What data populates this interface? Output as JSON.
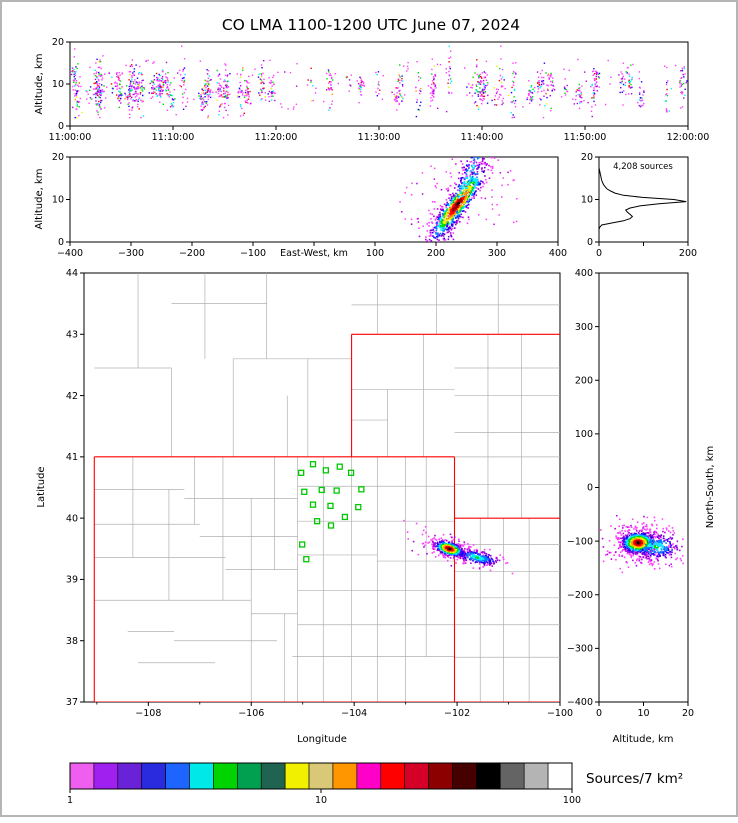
{
  "title": "CO LMA 1100-1200 UTC June 07, 2024",
  "colorbar": {
    "label": "Sources/7 km²",
    "scale": "log",
    "tick_values": [
      1,
      10,
      100
    ],
    "tick_labels": [
      "1",
      "10",
      "100"
    ],
    "colors": [
      "#ef5fef",
      "#a020f0",
      "#6a22d8",
      "#2a2ade",
      "#1e64ff",
      "#00e8e8",
      "#00d400",
      "#00a050",
      "#1e6450",
      "#f0f000",
      "#d8c878",
      "#ff9600",
      "#ff00c8",
      "#ff0000",
      "#d40028",
      "#8c0000",
      "#460000",
      "#000000",
      "#646464",
      "#b4b4b4",
      "#ffffff"
    ]
  },
  "palette": {
    "scatter_hot_order": [
      "#ff3cff",
      "#b400e6",
      "#7800d2",
      "#1e00ff",
      "#0078ff",
      "#00f0ff",
      "#00dc00",
      "#f0f000",
      "#ff9600",
      "#ff0000",
      "#a00000",
      "#000000"
    ]
  },
  "chart_data": [
    {
      "id": "time-height",
      "type": "scatter",
      "ylabel": "Altitude, km",
      "xlim": [
        0,
        3600
      ],
      "ylim": [
        0,
        20
      ],
      "x_ticks": {
        "values": [
          0,
          600,
          1200,
          1800,
          2400,
          3000,
          3600
        ],
        "labels": [
          "11:00:00",
          "11:10:00",
          "11:20:00",
          "11:30:00",
          "11:40:00",
          "11:50:00",
          "12:00:00"
        ]
      },
      "y_ticks": {
        "values": [
          0,
          10,
          20
        ],
        "labels": [
          "0",
          "10",
          "20"
        ]
      },
      "column_groups": [
        {
          "t_start": 0,
          "t_end": 1250,
          "columns": 40
        },
        {
          "t_start": 1250,
          "t_end": 2050,
          "columns": 9
        },
        {
          "t_start": 2050,
          "t_end": 3150,
          "columns": 19
        },
        {
          "t_start": 3150,
          "t_end": 3580,
          "columns": 5
        }
      ],
      "sparse_points": 130,
      "altitude_range": [
        2,
        19
      ]
    },
    {
      "id": "ew-height",
      "type": "scatter",
      "ylabel": "Altitude, km",
      "xlim": [
        -400,
        400
      ],
      "ylim": [
        0,
        20
      ],
      "x_ticks": {
        "values": [
          -400,
          -300,
          -200,
          -100,
          0,
          100,
          200,
          300,
          400
        ],
        "labels": [
          "−400",
          "−300",
          "−200",
          "−100",
          "East-West, km",
          "100",
          "200",
          "300",
          "400"
        ]
      },
      "y_ticks": {
        "values": [
          0,
          10,
          20
        ],
        "labels": [
          "0",
          "10",
          "20"
        ]
      },
      "clusters": [
        {
          "cx": 235,
          "cy": 8.8,
          "sx": 22,
          "sy": 1.7,
          "tilt_deg": 10,
          "n": 700,
          "style": "hot"
        },
        {
          "cx": 248,
          "cy": 13.2,
          "sx": 26,
          "sy": 2.6,
          "tilt_deg": 18,
          "n": 240,
          "style": "cool"
        },
        {
          "cx": 233,
          "cy": 10.5,
          "sx": 48,
          "sy": 3.6,
          "tilt_deg": 12,
          "n": 300,
          "style": "halo"
        }
      ],
      "sparse": {
        "n": 60,
        "x_range": [
          140,
          335
        ],
        "y_range": [
          3.5,
          19
        ]
      }
    },
    {
      "id": "altitude-histogram",
      "type": "line",
      "annotation": "4,208 sources",
      "xlim": [
        0,
        200
      ],
      "ylim": [
        0,
        20
      ],
      "x_ticks": {
        "values": [
          0,
          100,
          200
        ],
        "labels": [
          "0",
          "",
          "200"
        ]
      },
      "y_ticks": {
        "values": [
          0,
          10,
          20
        ],
        "labels": [
          "0",
          "10",
          "20"
        ]
      },
      "profile": {
        "altitudes": [
          0,
          0.5,
          1,
          1.5,
          2,
          2.5,
          3,
          3.5,
          4,
          4.5,
          5,
          5.5,
          6,
          6.5,
          7,
          7.5,
          8,
          8.5,
          9,
          9.5,
          10,
          10.5,
          11,
          11.5,
          12,
          12.5,
          13,
          13.5,
          14,
          14.5,
          15,
          15.5,
          16,
          16.5,
          17,
          17.5,
          18,
          18.5,
          19,
          19.5,
          20
        ],
        "counts": [
          0,
          0,
          0,
          0,
          0,
          0,
          0,
          2,
          6,
          30,
          55,
          70,
          75,
          70,
          64,
          60,
          70,
          92,
          135,
          196,
          168,
          98,
          55,
          36,
          26,
          18,
          14,
          10,
          8,
          6,
          5,
          4,
          3,
          2,
          1,
          0,
          0,
          0,
          0,
          0,
          0
        ]
      }
    },
    {
      "id": "map",
      "type": "scatter",
      "xlabel": "Longitude",
      "ylabel": "Latitude",
      "xlim": [
        -109.25,
        -100
      ],
      "ylim": [
        37,
        44
      ],
      "x_ticks": {
        "values": [
          -108,
          -106,
          -104,
          -102,
          -100
        ],
        "labels": [
          "−108",
          "−106",
          "−104",
          "−102",
          "−100"
        ]
      },
      "x_minor_ticks": [
        -109,
        -107,
        -105,
        -103,
        -101
      ],
      "y_ticks": {
        "values": [
          37,
          38,
          39,
          40,
          41,
          42,
          43,
          44
        ],
        "labels": [
          "37",
          "38",
          "39",
          "40",
          "41",
          "42",
          "43",
          "44"
        ]
      },
      "county_color": "#b0b0b0",
      "state_color": "#ff0000",
      "station_color": "#00c800",
      "state_lines": [
        [
          -109.05,
          37,
          -109.05,
          41
        ],
        [
          -109.05,
          41,
          -102.05,
          41
        ],
        [
          -102.05,
          37,
          -102.05,
          41
        ],
        [
          -109.05,
          37,
          -100,
          37
        ],
        [
          -102.05,
          40,
          -100,
          40
        ],
        [
          -104.05,
          41,
          -104.05,
          43
        ],
        [
          -104.05,
          43,
          -100,
          43
        ]
      ],
      "county_lines": [
        [
          -109.05,
          40.47,
          -107.3,
          40.47
        ],
        [
          -107.3,
          40.32,
          -105.1,
          40.32
        ],
        [
          -105.1,
          40.52,
          -102.05,
          40.52
        ],
        [
          -109.05,
          39.9,
          -107.0,
          39.9
        ],
        [
          -107.0,
          39.7,
          -105.1,
          39.7
        ],
        [
          -105.1,
          39.95,
          -102.05,
          39.95
        ],
        [
          -109.05,
          39.36,
          -106.5,
          39.36
        ],
        [
          -106.5,
          39.16,
          -105.1,
          39.16
        ],
        [
          -105.1,
          39.4,
          -103.55,
          39.4
        ],
        [
          -103.55,
          39.3,
          -102.05,
          39.3
        ],
        [
          -109.05,
          38.66,
          -106.0,
          38.66
        ],
        [
          -106.0,
          38.44,
          -105.1,
          38.44
        ],
        [
          -105.1,
          38.82,
          -102.05,
          38.82
        ],
        [
          -108.4,
          38.15,
          -107.5,
          38.15
        ],
        [
          -107.5,
          38.0,
          -105.5,
          38.0
        ],
        [
          -105.1,
          38.26,
          -102.05,
          38.26
        ],
        [
          -108.2,
          37.64,
          -106.7,
          37.64
        ],
        [
          -105.2,
          37.74,
          -102.05,
          37.74
        ],
        [
          -108.3,
          41.0,
          -108.3,
          39.36
        ],
        [
          -107.6,
          40.47,
          -107.6,
          38.66
        ],
        [
          -107.1,
          41.0,
          -107.1,
          39.9
        ],
        [
          -106.55,
          41.0,
          -106.55,
          38.66
        ],
        [
          -106.0,
          40.32,
          -106.0,
          37.0
        ],
        [
          -105.55,
          41.0,
          -105.55,
          39.16
        ],
        [
          -105.35,
          38.44,
          -105.35,
          37.0
        ],
        [
          -105.1,
          41.0,
          -105.1,
          37.0
        ],
        [
          -104.6,
          41.0,
          -104.6,
          37.0
        ],
        [
          -104.05,
          41.0,
          -104.05,
          37.0
        ],
        [
          -103.55,
          41.0,
          -103.55,
          37.0
        ],
        [
          -103.0,
          41.0,
          -103.0,
          37.0
        ],
        [
          -102.6,
          41.0,
          -102.6,
          37.74
        ],
        [
          -103.35,
          41.0,
          -103.35,
          42.1
        ],
        [
          -102.65,
          41.0,
          -102.65,
          43.0
        ],
        [
          -104.05,
          42.1,
          -102.05,
          42.1
        ],
        [
          -104.05,
          41.6,
          -103.35,
          41.6
        ],
        [
          -102.05,
          42.45,
          -100.0,
          42.45
        ],
        [
          -102.05,
          42.0,
          -100.0,
          42.0
        ],
        [
          -102.05,
          41.4,
          -100.0,
          41.4
        ],
        [
          -102.05,
          41.0,
          -100.0,
          41.0
        ],
        [
          -102.05,
          40.55,
          -100.0,
          40.55
        ],
        [
          -101.4,
          40.0,
          -101.4,
          43.0
        ],
        [
          -100.75,
          40.0,
          -100.75,
          43.0
        ],
        [
          -102.05,
          39.57,
          -100.0,
          39.57
        ],
        [
          -102.05,
          39.13,
          -100.0,
          39.13
        ],
        [
          -102.05,
          38.7,
          -100.0,
          38.7
        ],
        [
          -102.05,
          38.26,
          -100.0,
          38.26
        ],
        [
          -102.05,
          37.73,
          -100.0,
          37.73
        ],
        [
          -101.55,
          37.0,
          -101.55,
          40.0
        ],
        [
          -101.1,
          37.0,
          -101.1,
          40.0
        ],
        [
          -100.6,
          37.0,
          -100.6,
          40.0
        ],
        [
          -107.55,
          41.0,
          -107.55,
          42.45
        ],
        [
          -106.35,
          41.0,
          -106.35,
          42.6
        ],
        [
          -105.3,
          41.0,
          -105.3,
          42.0
        ],
        [
          -104.9,
          41.0,
          -104.9,
          42.6
        ],
        [
          -109.05,
          42.45,
          -107.55,
          42.45
        ],
        [
          -106.35,
          42.6,
          -104.05,
          42.6
        ],
        [
          -108.2,
          42.45,
          -108.2,
          44.0
        ],
        [
          -106.9,
          42.6,
          -106.9,
          44.0
        ],
        [
          -105.7,
          42.6,
          -105.7,
          44.0
        ],
        [
          -107.55,
          43.5,
          -105.7,
          43.5
        ],
        [
          -103.55,
          43.0,
          -103.55,
          44.0
        ],
        [
          -102.4,
          43.0,
          -102.4,
          44.0
        ],
        [
          -101.2,
          43.0,
          -101.2,
          44.0
        ],
        [
          -104.05,
          43.48,
          -100.0,
          43.48
        ]
      ],
      "stations": [
        [
          -105.03,
          40.74
        ],
        [
          -104.8,
          40.88
        ],
        [
          -104.55,
          40.78
        ],
        [
          -104.28,
          40.84
        ],
        [
          -104.06,
          40.74
        ],
        [
          -104.97,
          40.43
        ],
        [
          -104.63,
          40.46
        ],
        [
          -104.34,
          40.45
        ],
        [
          -103.86,
          40.47
        ],
        [
          -104.8,
          40.22
        ],
        [
          -104.46,
          40.2
        ],
        [
          -103.92,
          40.18
        ],
        [
          -104.72,
          39.95
        ],
        [
          -104.45,
          39.88
        ],
        [
          -104.18,
          40.02
        ],
        [
          -105.01,
          39.57
        ],
        [
          -104.93,
          39.33
        ]
      ],
      "clusters": [
        {
          "cx": -102.15,
          "cy": 39.5,
          "sx": 0.13,
          "sy": 0.05,
          "tilt_deg": -14,
          "n": 480,
          "style": "hot"
        },
        {
          "cx": -101.62,
          "cy": 39.36,
          "sx": 0.22,
          "sy": 0.05,
          "tilt_deg": -10,
          "n": 240,
          "style": "cool"
        },
        {
          "cx": -101.95,
          "cy": 39.45,
          "sx": 0.38,
          "sy": 0.1,
          "tilt_deg": -13,
          "n": 200,
          "style": "halo"
        }
      ]
    },
    {
      "id": "ns-height",
      "type": "scatter",
      "xlabel": "Altitude, km",
      "ylabel": "North-South, km",
      "xlim": [
        0,
        20
      ],
      "ylim": [
        -400,
        400
      ],
      "x_ticks": {
        "values": [
          0,
          10,
          20
        ],
        "labels": [
          "0",
          "10",
          "20"
        ]
      },
      "y_ticks": {
        "values": [
          400,
          300,
          200,
          100,
          0,
          -100,
          -200,
          -300,
          -400
        ],
        "labels": [
          "400",
          "300",
          "200",
          "100",
          "0",
          "−100",
          "−200",
          "−300",
          "−400"
        ]
      },
      "clusters": [
        {
          "cx": 8.8,
          "cy": -103,
          "sx": 1.7,
          "sy": 9,
          "tilt_deg": 0,
          "n": 700,
          "style": "hot"
        },
        {
          "cx": 12.8,
          "cy": -110,
          "sx": 2.6,
          "sy": 12,
          "tilt_deg": 0,
          "n": 240,
          "style": "cool"
        },
        {
          "cx": 10,
          "cy": -105,
          "sx": 3.6,
          "sy": 20,
          "tilt_deg": 0,
          "n": 300,
          "style": "halo"
        }
      ],
      "sparse": {
        "n": 50,
        "x_range": [
          3.5,
          19
        ],
        "y_range": [
          -160,
          -50
        ]
      }
    }
  ]
}
